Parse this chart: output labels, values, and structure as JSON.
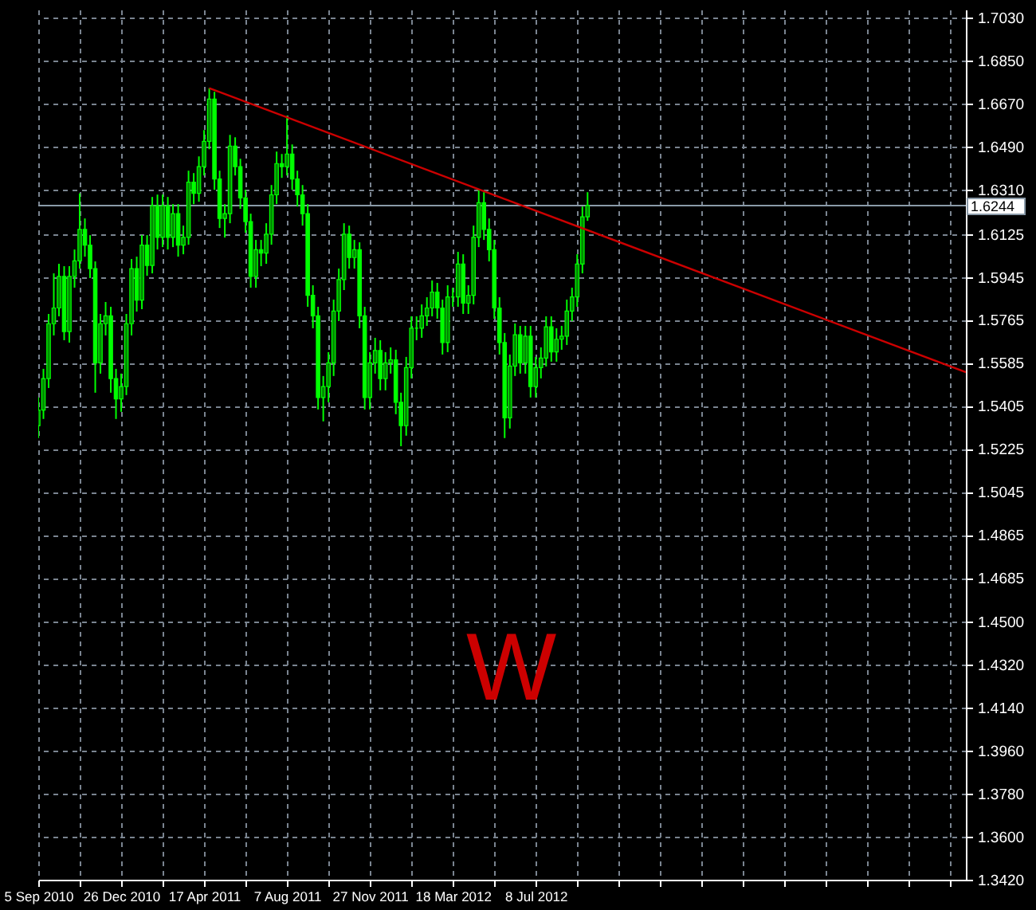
{
  "chart_data": {
    "type": "candlestick",
    "annotations": [
      "W"
    ],
    "xlim": [
      "2010-09-05",
      "2014-02-09"
    ],
    "ylim": [
      1.342,
      1.7065
    ],
    "yticks": [
      {
        "value": 1.342,
        "label": "1.3420"
      },
      {
        "value": 1.36,
        "label": "1.3600"
      },
      {
        "value": 1.378,
        "label": "1.3780"
      },
      {
        "value": 1.396,
        "label": "1.3960"
      },
      {
        "value": 1.414,
        "label": "1.4140"
      },
      {
        "value": 1.432,
        "label": "1.4320"
      },
      {
        "value": 1.45,
        "label": "1.4500"
      },
      {
        "value": 1.4685,
        "label": "1.4685"
      },
      {
        "value": 1.4865,
        "label": "1.4865"
      },
      {
        "value": 1.5045,
        "label": "1.5045"
      },
      {
        "value": 1.5225,
        "label": "1.5225"
      },
      {
        "value": 1.5405,
        "label": "1.5405"
      },
      {
        "value": 1.5585,
        "label": "1.5585"
      },
      {
        "value": 1.5765,
        "label": "1.5765"
      },
      {
        "value": 1.5945,
        "label": "1.5945"
      },
      {
        "value": 1.6125,
        "label": "1.6125"
      },
      {
        "value": 1.631,
        "label": "1.6310"
      },
      {
        "value": 1.649,
        "label": "1.6490"
      },
      {
        "value": 1.667,
        "label": "1.6670"
      },
      {
        "value": 1.685,
        "label": "1.6850"
      },
      {
        "value": 1.703,
        "label": "1.7030"
      }
    ],
    "xticks": [
      {
        "value": "2010-09-05",
        "label": "5 Sep 2010"
      },
      {
        "value": "2010-10-31",
        "label": null
      },
      {
        "value": "2010-12-26",
        "label": "26 Dec 2010"
      },
      {
        "value": "2011-02-20",
        "label": null
      },
      {
        "value": "2011-04-17",
        "label": "17 Apr 2011"
      },
      {
        "value": "2011-06-12",
        "label": null
      },
      {
        "value": "2011-08-07",
        "label": "7 Aug 2011"
      },
      {
        "value": "2011-10-02",
        "label": null
      },
      {
        "value": "2011-11-27",
        "label": "27 Nov 2011"
      },
      {
        "value": "2012-01-22",
        "label": null
      },
      {
        "value": "2012-03-18",
        "label": "18 Mar 2012"
      },
      {
        "value": "2012-05-13",
        "label": null
      },
      {
        "value": "2012-07-08",
        "label": "8 Jul 2012"
      },
      {
        "value": "2012-09-02",
        "label": null
      },
      {
        "value": "2012-10-28",
        "label": null
      },
      {
        "value": "2012-12-23",
        "label": null
      },
      {
        "value": "2013-02-17",
        "label": null
      },
      {
        "value": "2013-04-14",
        "label": null
      },
      {
        "value": "2013-06-09",
        "label": null
      },
      {
        "value": "2013-08-04",
        "label": null
      },
      {
        "value": "2013-09-29",
        "label": null
      },
      {
        "value": "2013-11-24",
        "label": null
      },
      {
        "value": "2014-01-19",
        "label": null
      }
    ],
    "grid": true,
    "ref_lines": [
      {
        "axis": "y",
        "value": 1.6244,
        "label": "1.6244",
        "color": "#8a9aa8"
      }
    ],
    "series": [
      {
        "color": "#00ff00",
        "x": [
          "2010-09-05",
          "2010-09-12",
          "2010-09-19",
          "2010-09-26",
          "2010-10-03",
          "2010-10-10",
          "2010-10-17",
          "2010-10-24",
          "2010-10-31",
          "2010-11-07",
          "2010-11-14",
          "2010-11-21",
          "2010-11-28",
          "2010-12-05",
          "2010-12-12",
          "2010-12-19",
          "2010-12-26",
          "2011-01-02",
          "2011-01-09",
          "2011-01-16",
          "2011-01-23",
          "2011-01-30",
          "2011-02-06",
          "2011-02-13",
          "2011-02-20",
          "2011-02-27",
          "2011-03-06",
          "2011-03-13",
          "2011-03-20",
          "2011-03-27",
          "2011-04-03",
          "2011-04-10",
          "2011-04-17",
          "2011-04-24",
          "2011-05-01",
          "2011-05-08",
          "2011-05-15",
          "2011-05-22",
          "2011-05-29",
          "2011-06-05",
          "2011-06-12",
          "2011-06-19",
          "2011-06-26",
          "2011-07-03",
          "2011-07-10",
          "2011-07-17",
          "2011-07-24",
          "2011-07-31",
          "2011-08-07",
          "2011-08-14",
          "2011-08-21",
          "2011-08-28",
          "2011-09-04",
          "2011-09-11",
          "2011-09-18",
          "2011-09-25",
          "2011-10-02",
          "2011-10-09",
          "2011-10-16",
          "2011-10-23",
          "2011-10-30",
          "2011-11-06",
          "2011-11-13",
          "2011-11-20",
          "2011-11-27",
          "2011-12-04",
          "2011-12-11",
          "2011-12-18",
          "2011-12-25",
          "2012-01-01",
          "2012-01-08",
          "2012-01-15",
          "2012-01-22",
          "2012-01-29",
          "2012-02-05",
          "2012-02-12",
          "2012-02-19",
          "2012-02-26",
          "2012-03-04",
          "2012-03-11",
          "2012-03-18",
          "2012-03-25",
          "2012-04-01",
          "2012-04-08",
          "2012-04-15",
          "2012-04-22",
          "2012-04-29",
          "2012-05-06",
          "2012-05-13",
          "2012-05-20",
          "2012-05-27",
          "2012-06-03",
          "2012-06-10",
          "2012-06-17",
          "2012-06-24",
          "2012-07-01",
          "2012-07-08",
          "2012-07-15",
          "2012-07-22",
          "2012-07-29",
          "2012-08-05",
          "2012-08-12",
          "2012-08-19",
          "2012-08-26",
          "2012-09-02",
          "2012-09-09",
          "2012-09-16"
        ],
        "ohlc": [
          [
            1.5322,
            1.544,
            1.527,
            1.5387
          ],
          [
            1.5387,
            1.556,
            1.535,
            1.5519
          ],
          [
            1.5519,
            1.579,
            1.548,
            1.5749
          ],
          [
            1.5749,
            1.596,
            1.57,
            1.5815
          ],
          [
            1.5815,
            1.6,
            1.578,
            1.5947
          ],
          [
            1.5947,
            1.599,
            1.568,
            1.5716
          ],
          [
            1.5716,
            1.599,
            1.567,
            1.5947
          ],
          [
            1.5947,
            1.606,
            1.59,
            1.6012
          ],
          [
            1.6012,
            1.6295,
            1.598,
            1.6144
          ],
          [
            1.6144,
            1.619,
            1.603,
            1.6078
          ],
          [
            1.6078,
            1.612,
            1.594,
            1.598
          ],
          [
            1.598,
            1.601,
            1.546,
            1.5585
          ],
          [
            1.5585,
            1.579,
            1.554,
            1.5749
          ],
          [
            1.5749,
            1.584,
            1.57,
            1.5782
          ],
          [
            1.5782,
            1.582,
            1.546,
            1.5519
          ],
          [
            1.5519,
            1.556,
            1.535,
            1.5434
          ],
          [
            1.5434,
            1.554,
            1.538,
            1.5486
          ],
          [
            1.5486,
            1.579,
            1.545,
            1.5749
          ],
          [
            1.5749,
            1.602,
            1.57,
            1.598
          ],
          [
            1.598,
            1.603,
            1.58,
            1.5848
          ],
          [
            1.5848,
            1.612,
            1.581,
            1.6078
          ],
          [
            1.6078,
            1.612,
            1.595,
            1.5993
          ],
          [
            1.5993,
            1.628,
            1.596,
            1.6243
          ],
          [
            1.6243,
            1.629,
            1.606,
            1.6111
          ],
          [
            1.6111,
            1.629,
            1.607,
            1.6243
          ],
          [
            1.6243,
            1.628,
            1.606,
            1.6111
          ],
          [
            1.6111,
            1.625,
            1.607,
            1.621
          ],
          [
            1.621,
            1.625,
            1.603,
            1.6078
          ],
          [
            1.6078,
            1.616,
            1.604,
            1.6111
          ],
          [
            1.6111,
            1.639,
            1.608,
            1.6342
          ],
          [
            1.6342,
            1.638,
            1.625,
            1.6295
          ],
          [
            1.6295,
            1.645,
            1.626,
            1.6407
          ],
          [
            1.6407,
            1.656,
            1.637,
            1.6513
          ],
          [
            1.6513,
            1.6736,
            1.648,
            1.669
          ],
          [
            1.669,
            1.672,
            1.631,
            1.6355
          ],
          [
            1.6355,
            1.639,
            1.615,
            1.619
          ],
          [
            1.619,
            1.625,
            1.611,
            1.621
          ],
          [
            1.621,
            1.654,
            1.617,
            1.6493
          ],
          [
            1.6493,
            1.653,
            1.637,
            1.6407
          ],
          [
            1.6407,
            1.644,
            1.623,
            1.6276
          ],
          [
            1.6276,
            1.631,
            1.613,
            1.6177
          ],
          [
            1.6177,
            1.621,
            1.59,
            1.5947
          ],
          [
            1.5947,
            1.61,
            1.59,
            1.6059
          ],
          [
            1.6059,
            1.61,
            1.599,
            1.6045
          ],
          [
            1.6045,
            1.617,
            1.6,
            1.6124
          ],
          [
            1.6124,
            1.633,
            1.608,
            1.6289
          ],
          [
            1.6289,
            1.647,
            1.625,
            1.642
          ],
          [
            1.642,
            1.646,
            1.636,
            1.6407
          ],
          [
            1.6407,
            1.662,
            1.637,
            1.646
          ],
          [
            1.646,
            1.65,
            1.631,
            1.6355
          ],
          [
            1.6355,
            1.639,
            1.624,
            1.6289
          ],
          [
            1.6289,
            1.633,
            1.616,
            1.621
          ],
          [
            1.621,
            1.625,
            1.582,
            1.5868
          ],
          [
            1.5868,
            1.591,
            1.573,
            1.5782
          ],
          [
            1.5782,
            1.582,
            1.539,
            1.544
          ],
          [
            1.544,
            1.553,
            1.534,
            1.5486
          ],
          [
            1.5486,
            1.563,
            1.542,
            1.5585
          ],
          [
            1.5585,
            1.585,
            1.553,
            1.5802
          ],
          [
            1.5802,
            1.598,
            1.576,
            1.5934
          ],
          [
            1.5934,
            1.617,
            1.589,
            1.6124
          ],
          [
            1.6124,
            1.616,
            1.598,
            1.6026
          ],
          [
            1.6026,
            1.61,
            1.598,
            1.6059
          ],
          [
            1.6059,
            1.609,
            1.573,
            1.5782
          ],
          [
            1.5782,
            1.582,
            1.539,
            1.544
          ],
          [
            1.544,
            1.563,
            1.539,
            1.5585
          ],
          [
            1.5585,
            1.569,
            1.554,
            1.5637
          ],
          [
            1.5637,
            1.568,
            1.547,
            1.5519
          ],
          [
            1.5519,
            1.563,
            1.547,
            1.5585
          ],
          [
            1.5585,
            1.565,
            1.554,
            1.5598
          ],
          [
            1.5598,
            1.564,
            1.537,
            1.542
          ],
          [
            1.542,
            1.546,
            1.5236,
            1.5322
          ],
          [
            1.5322,
            1.561,
            1.528,
            1.5565
          ],
          [
            1.5565,
            1.578,
            1.552,
            1.573
          ],
          [
            1.573,
            1.578,
            1.568,
            1.573
          ],
          [
            1.573,
            1.583,
            1.569,
            1.5782
          ],
          [
            1.5782,
            1.586,
            1.574,
            1.5815
          ],
          [
            1.5815,
            1.593,
            1.578,
            1.5881
          ],
          [
            1.5881,
            1.592,
            1.577,
            1.5815
          ],
          [
            1.5815,
            1.585,
            1.562,
            1.567
          ],
          [
            1.567,
            1.591,
            1.563,
            1.5861
          ],
          [
            1.5861,
            1.59,
            1.582,
            1.5861
          ],
          [
            1.5861,
            1.605,
            1.582,
            1.5999
          ],
          [
            1.5999,
            1.604,
            1.579,
            1.5835
          ],
          [
            1.5835,
            1.591,
            1.579,
            1.5868
          ],
          [
            1.5868,
            1.616,
            1.583,
            1.6111
          ],
          [
            1.6111,
            1.631,
            1.607,
            1.6256
          ],
          [
            1.6256,
            1.63,
            1.61,
            1.6144
          ],
          [
            1.6144,
            1.619,
            1.601,
            1.6059
          ],
          [
            1.6059,
            1.61,
            1.577,
            1.5815
          ],
          [
            1.5815,
            1.586,
            1.562,
            1.567
          ],
          [
            1.567,
            1.571,
            1.527,
            1.5355
          ],
          [
            1.5355,
            1.562,
            1.531,
            1.5572
          ],
          [
            1.5572,
            1.575,
            1.553,
            1.5703
          ],
          [
            1.5703,
            1.574,
            1.554,
            1.5585
          ],
          [
            1.5585,
            1.574,
            1.554,
            1.5697
          ],
          [
            1.5697,
            1.574,
            1.544,
            1.5486
          ],
          [
            1.5486,
            1.561,
            1.544,
            1.5565
          ],
          [
            1.5565,
            1.565,
            1.552,
            1.5605
          ],
          [
            1.5605,
            1.578,
            1.557,
            1.5736
          ],
          [
            1.5736,
            1.578,
            1.559,
            1.5631
          ],
          [
            1.5631,
            1.573,
            1.559,
            1.5684
          ],
          [
            1.5684,
            1.574,
            1.564,
            1.5697
          ],
          [
            1.5697,
            1.585,
            1.566,
            1.5802
          ],
          [
            1.5802,
            1.59,
            1.576,
            1.5861
          ],
          [
            1.5861,
            1.604,
            1.582,
            1.5999
          ],
          [
            1.5999,
            1.624,
            1.596,
            1.6197
          ],
          [
            1.6197,
            1.63,
            1.618,
            1.6244
          ]
        ]
      },
      {
        "type": "line",
        "color": "#cc0000",
        "x": [
          "2011-04-24",
          "2014-02-09"
        ],
        "values": [
          1.6736,
          1.5546
        ]
      }
    ]
  }
}
